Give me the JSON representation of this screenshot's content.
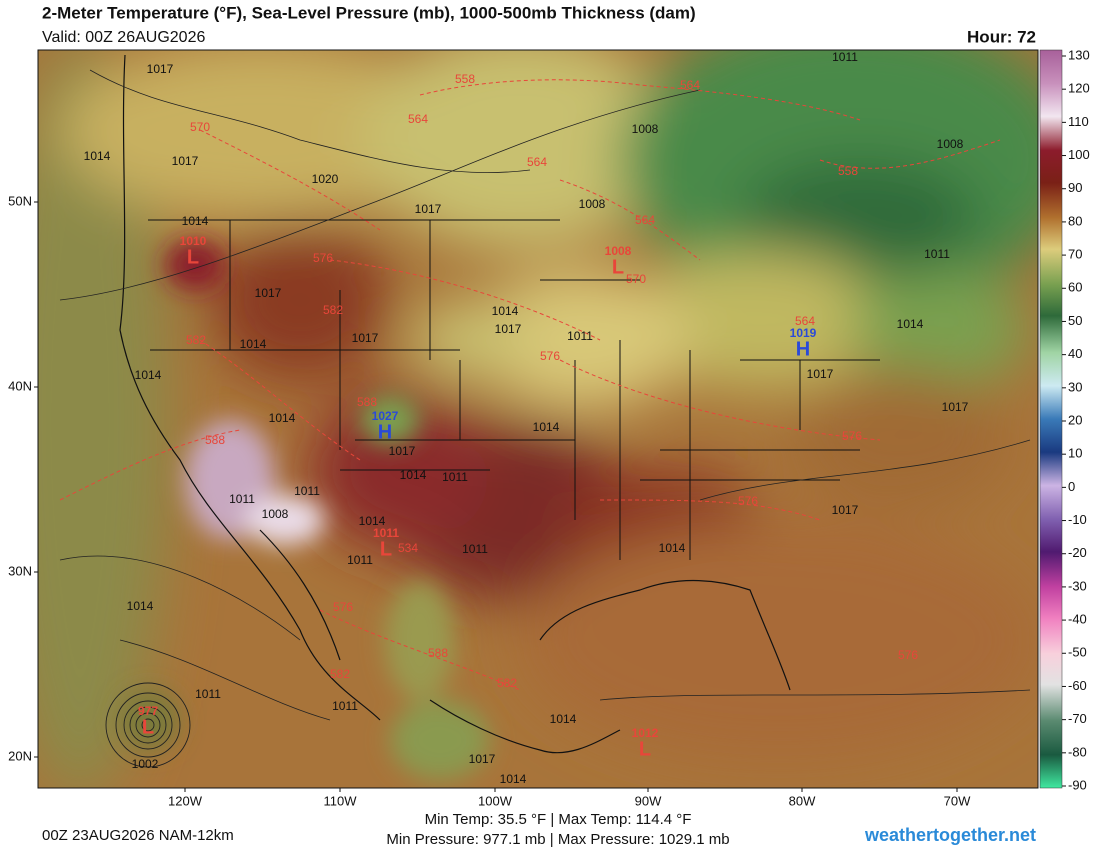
{
  "header": {
    "title": "2-Meter Temperature (°F), Sea-Level Pressure (mb), 1000-500mb Thickness (dam)",
    "valid": "Valid: 00Z 26AUG2026",
    "hour": "Hour: 72"
  },
  "colorbar": {
    "ticks": [
      130,
      120,
      110,
      100,
      90,
      80,
      70,
      60,
      50,
      40,
      30,
      20,
      10,
      0,
      -10,
      -20,
      -30,
      -40,
      -50,
      -60,
      -70,
      -80,
      -90
    ]
  },
  "map": {
    "lat_labels": [
      "50N",
      "40N",
      "30N",
      "20N"
    ],
    "lon_labels": [
      "120W",
      "110W",
      "100W",
      "90W",
      "80W",
      "70W"
    ],
    "isobar_labels": [
      1017,
      1014,
      1017,
      1020,
      1017,
      1008,
      1008,
      1011,
      1008,
      1011,
      1014,
      1017,
      1017,
      1017,
      1014,
      1014,
      1011,
      1014,
      1017,
      1017,
      1014,
      1017,
      1014,
      1011,
      1008,
      1011,
      1014,
      1011,
      1011,
      1002,
      1014,
      1017,
      1014,
      1011,
      1014,
      1014,
      1011,
      1017,
      1014,
      1011,
      1014
    ],
    "thickness_labels": [
      558,
      564,
      564,
      570,
      564,
      558,
      564,
      576,
      570,
      582,
      582,
      576,
      564,
      588,
      588,
      576,
      576,
      576,
      576,
      582,
      588,
      582,
      534
    ],
    "pressure_centers": [
      {
        "symbol": "L",
        "value": 1010
      },
      {
        "symbol": "L",
        "value": 1008
      },
      {
        "symbol": "H",
        "value": 1027
      },
      {
        "symbol": "H",
        "value": 1019
      },
      {
        "symbol": "L",
        "value": 1011
      },
      {
        "symbol": "L",
        "value": 977
      },
      {
        "symbol": "L",
        "value": 1012
      }
    ]
  },
  "footer": {
    "run": "00Z 23AUG2026 NAM-12km",
    "temp_range": "Min Temp:  35.5 °F | Max Temp: 114.4 °F",
    "pressure_range": "Min Pressure: 977.1 mb | Max Pressure: 1029.1 mb",
    "site": "weathertogether.net"
  }
}
